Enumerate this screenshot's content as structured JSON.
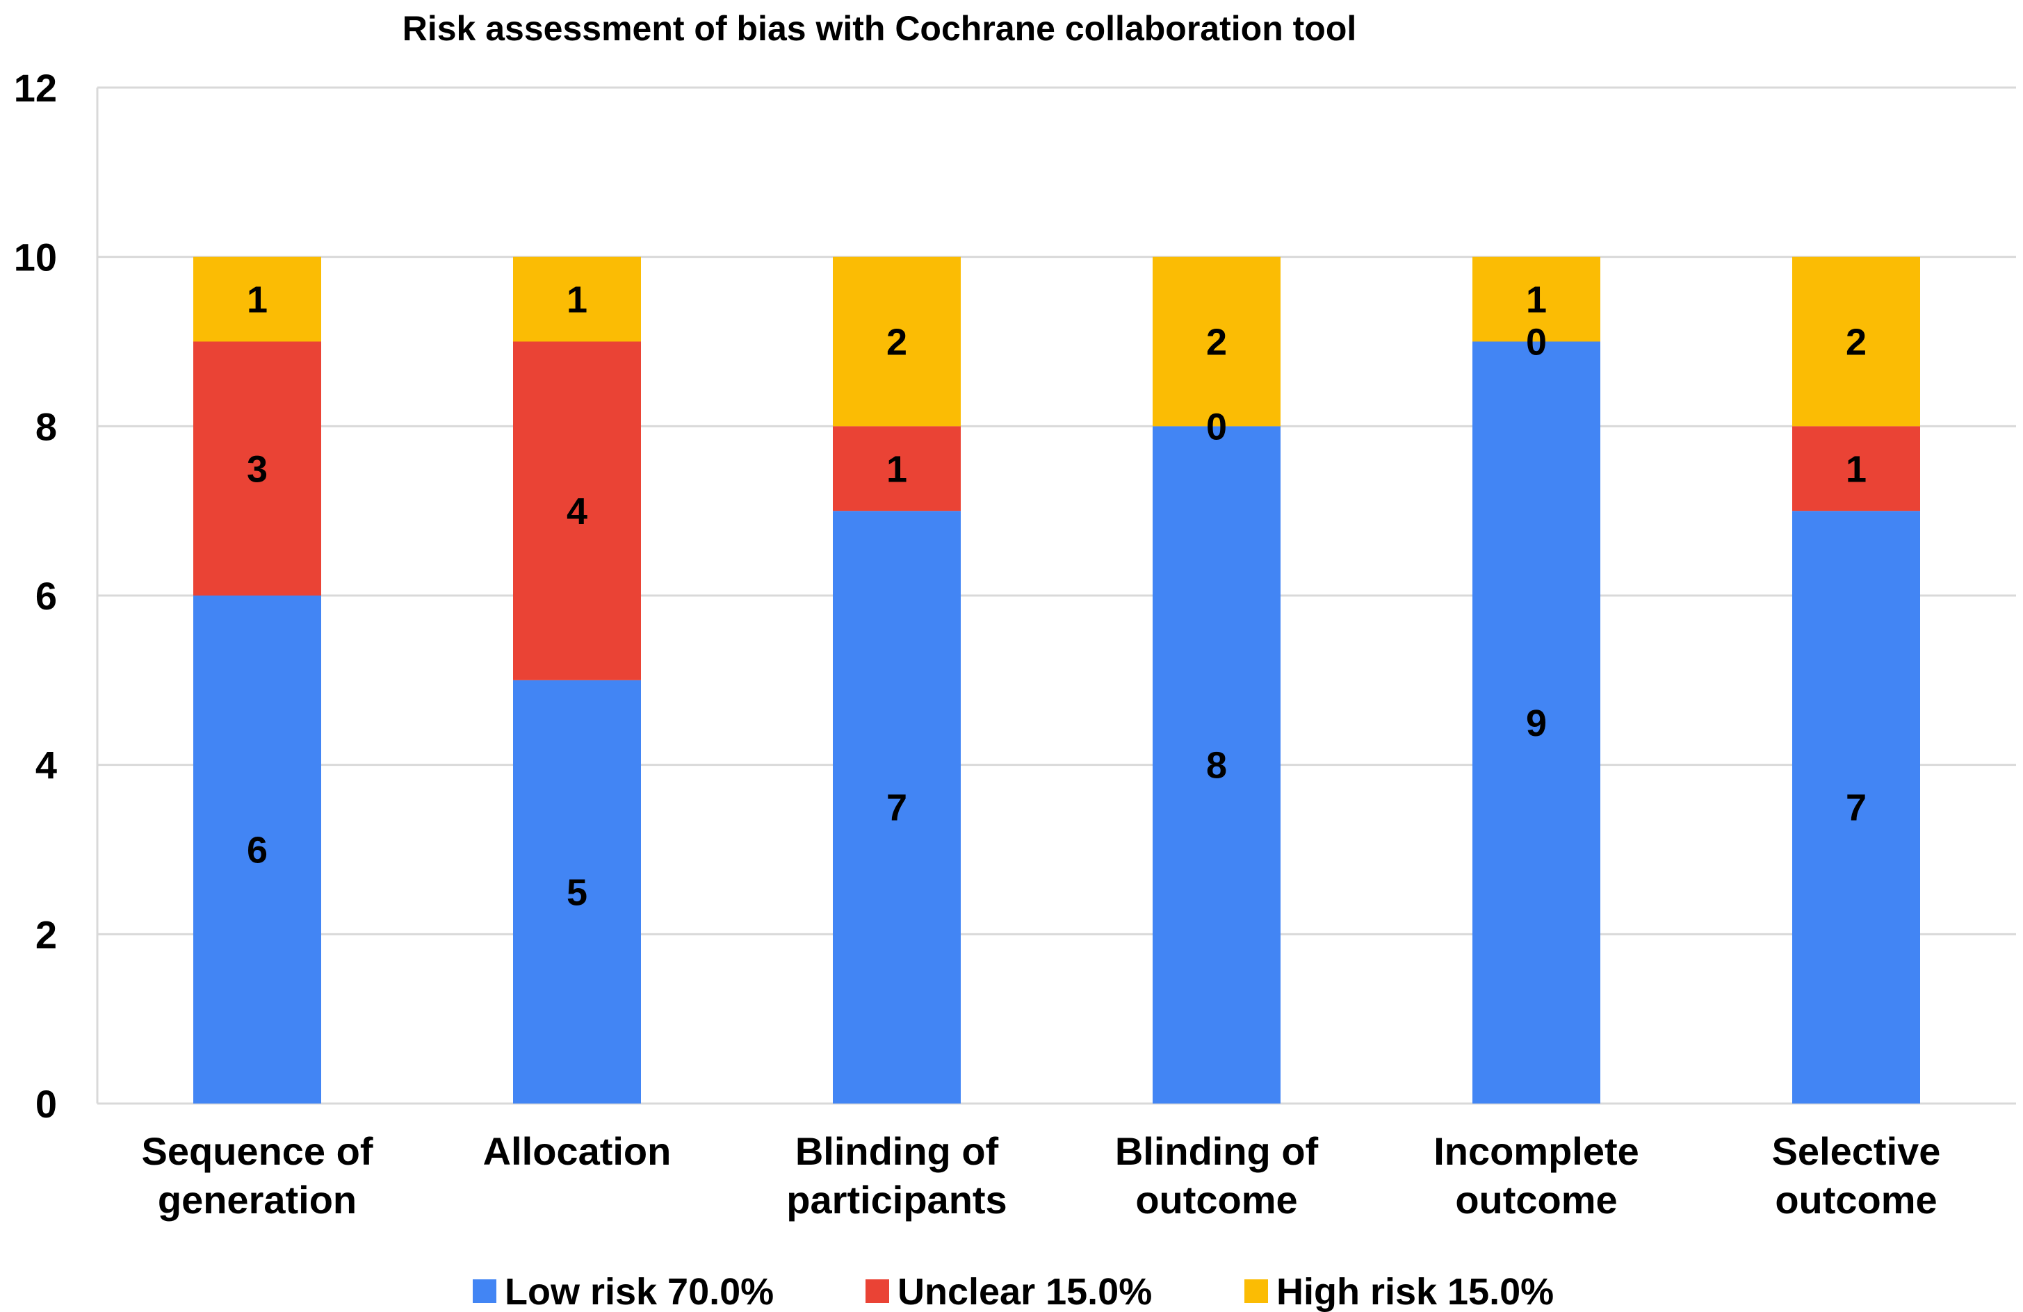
{
  "chart_data": {
    "type": "bar",
    "stacked": true,
    "title": "Risk assessment of bias with Cochrane collaboration tool",
    "categories": [
      [
        "Sequence of",
        "generation"
      ],
      [
        "Allocation"
      ],
      [
        "Blinding of",
        "participants"
      ],
      [
        "Blinding of",
        "outcome"
      ],
      [
        "Incomplete",
        "outcome"
      ],
      [
        "Selective",
        "outcome"
      ]
    ],
    "series": [
      {
        "name": "Low risk 70.0%",
        "color": "#4285f4",
        "values": [
          6,
          5,
          7,
          8,
          9,
          7
        ]
      },
      {
        "name": "Unclear 15.0%",
        "color": "#ea4335",
        "values": [
          3,
          4,
          1,
          0,
          0,
          1
        ]
      },
      {
        "name": "High risk 15.0%",
        "color": "#fbbc04",
        "values": [
          1,
          1,
          2,
          2,
          1,
          2
        ]
      }
    ],
    "ylim": [
      0,
      12
    ],
    "yticks": [
      0,
      2,
      4,
      6,
      8,
      10,
      12
    ],
    "grid": true,
    "legend": "bottom"
  }
}
